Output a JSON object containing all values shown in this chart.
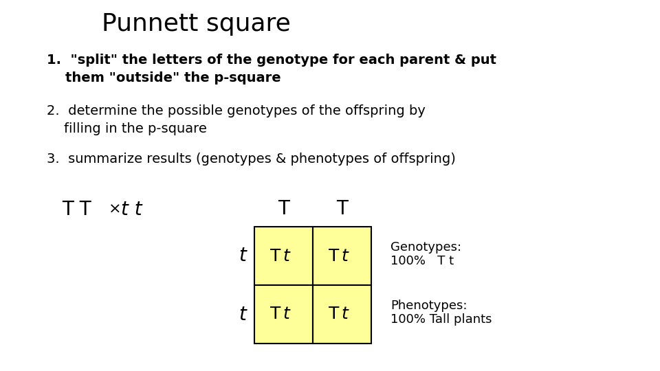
{
  "title": "Punnett square",
  "title_fontsize": 26,
  "background_color": "#ffffff",
  "step1": "1.  \"split\" the letters of the genotype for each parent & put\n    them \"outside\" the p-square",
  "step2": "2.  determine the possible genotypes of the offspring by\n    filling in the p-square",
  "step3": "3.  summarize results (genotypes & phenotypes of offspring)",
  "cross_TT": "T T",
  "cross_symbol": "×",
  "cross_tt": "t t",
  "col_headers": [
    "T",
    "T"
  ],
  "row_headers": [
    "t",
    "t"
  ],
  "cell_color": "#ffff99",
  "cell_border_color": "#000000",
  "genotypes_line1": "Genotypes:",
  "genotypes_line2": "100%   T t",
  "phenotypes_line1": "Phenotypes:",
  "phenotypes_line2": "100% Tall plants",
  "text_color": "#000000",
  "step1_fontsize": 14,
  "step2_fontsize": 14,
  "step3_fontsize": 14,
  "cross_fontsize": 20,
  "header_fontsize": 20,
  "cell_text_fontsize": 18,
  "side_fontsize": 13
}
